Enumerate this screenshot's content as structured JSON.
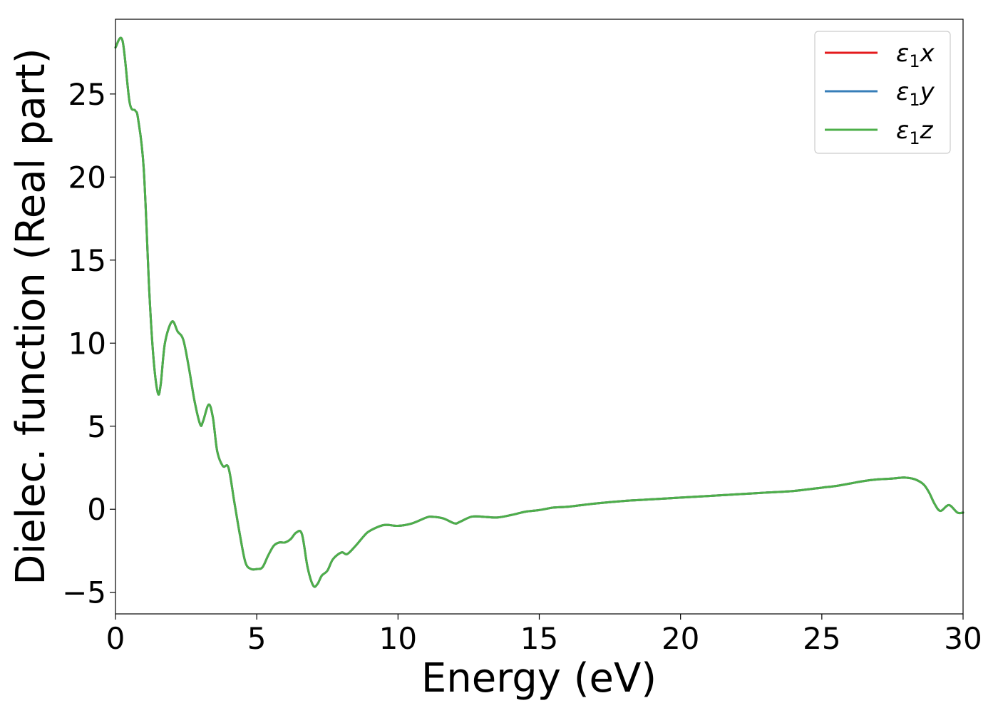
{
  "chart_data": {
    "type": "line",
    "title": "",
    "xlabel": "Energy (eV)",
    "ylabel": "Dielec. function (Real part)",
    "xlim": [
      0,
      30
    ],
    "ylim": [
      -6.3,
      29.5
    ],
    "xticks": [
      0,
      5,
      10,
      15,
      20,
      25,
      30
    ],
    "xtick_labels": [
      "0",
      "5",
      "10",
      "15",
      "20",
      "25",
      "30"
    ],
    "yticks": [
      -5,
      0,
      5,
      10,
      15,
      20,
      25
    ],
    "ytick_labels": [
      "−5",
      "0",
      "5",
      "10",
      "15",
      "20",
      "25"
    ],
    "grid": false,
    "legend_position": "top-right",
    "x": [
      0,
      0.25,
      0.5,
      0.7,
      0.8,
      1.0,
      1.2,
      1.35,
      1.5,
      1.6,
      1.75,
      2.0,
      2.2,
      2.4,
      2.6,
      2.8,
      3.0,
      3.1,
      3.3,
      3.45,
      3.6,
      3.8,
      4.0,
      4.2,
      4.4,
      4.6,
      4.8,
      5.0,
      5.2,
      5.4,
      5.6,
      5.8,
      6.0,
      6.2,
      6.4,
      6.6,
      6.8,
      7.0,
      7.15,
      7.3,
      7.5,
      7.7,
      8.0,
      8.2,
      8.5,
      8.8,
      9.0,
      9.5,
      10.0,
      10.5,
      11.0,
      11.2,
      11.6,
      12.0,
      12.2,
      12.6,
      13.0,
      13.5,
      14.0,
      14.5,
      15.0,
      15.5,
      16.0,
      17.0,
      18.0,
      19.0,
      20.0,
      21.0,
      22.0,
      23.0,
      24.0,
      25.0,
      25.5,
      26.0,
      26.5,
      27.0,
      27.5,
      27.8,
      28.0,
      28.3,
      28.6,
      28.8,
      29.0,
      29.2,
      29.5,
      29.8,
      30.0
    ],
    "series": [
      {
        "name": "ε₁x",
        "color": "#e41a1c",
        "values": [
          27.8,
          28.2,
          24.5,
          24.0,
          23.5,
          20.5,
          13.0,
          9.0,
          7.0,
          7.5,
          10.0,
          11.3,
          10.7,
          10.2,
          8.5,
          6.5,
          5.1,
          5.3,
          6.3,
          5.5,
          3.5,
          2.6,
          2.5,
          0.5,
          -1.5,
          -3.2,
          -3.6,
          -3.6,
          -3.5,
          -2.8,
          -2.2,
          -2.0,
          -2.0,
          -1.8,
          -1.4,
          -1.5,
          -3.5,
          -4.6,
          -4.5,
          -4.0,
          -3.7,
          -3.0,
          -2.6,
          -2.7,
          -2.2,
          -1.6,
          -1.3,
          -0.95,
          -1.0,
          -0.85,
          -0.5,
          -0.45,
          -0.55,
          -0.85,
          -0.75,
          -0.45,
          -0.45,
          -0.5,
          -0.35,
          -0.15,
          -0.05,
          0.1,
          0.15,
          0.35,
          0.5,
          0.6,
          0.7,
          0.8,
          0.9,
          1.0,
          1.1,
          1.3,
          1.4,
          1.55,
          1.7,
          1.8,
          1.85,
          1.9,
          1.9,
          1.8,
          1.5,
          1.0,
          0.3,
          -0.1,
          0.25,
          -0.2,
          -0.2
        ]
      },
      {
        "name": "ε₁y",
        "color": "#377eb8",
        "values": [
          27.8,
          28.2,
          24.5,
          24.0,
          23.5,
          20.5,
          13.0,
          9.0,
          7.0,
          7.5,
          10.0,
          11.3,
          10.7,
          10.2,
          8.5,
          6.5,
          5.1,
          5.3,
          6.3,
          5.5,
          3.5,
          2.6,
          2.5,
          0.5,
          -1.5,
          -3.2,
          -3.6,
          -3.6,
          -3.5,
          -2.8,
          -2.2,
          -2.0,
          -2.0,
          -1.8,
          -1.4,
          -1.5,
          -3.5,
          -4.6,
          -4.5,
          -4.0,
          -3.7,
          -3.0,
          -2.6,
          -2.7,
          -2.2,
          -1.6,
          -1.3,
          -0.95,
          -1.0,
          -0.85,
          -0.5,
          -0.45,
          -0.55,
          -0.85,
          -0.75,
          -0.45,
          -0.45,
          -0.5,
          -0.35,
          -0.15,
          -0.05,
          0.1,
          0.15,
          0.35,
          0.5,
          0.6,
          0.7,
          0.8,
          0.9,
          1.0,
          1.1,
          1.3,
          1.4,
          1.55,
          1.7,
          1.8,
          1.85,
          1.9,
          1.9,
          1.8,
          1.5,
          1.0,
          0.3,
          -0.1,
          0.25,
          -0.2,
          -0.2
        ]
      },
      {
        "name": "ε₁z",
        "color": "#4daf4a",
        "values": [
          27.8,
          28.2,
          24.5,
          24.0,
          23.5,
          20.5,
          13.0,
          9.0,
          7.0,
          7.5,
          10.0,
          11.3,
          10.7,
          10.2,
          8.5,
          6.5,
          5.1,
          5.3,
          6.3,
          5.5,
          3.5,
          2.6,
          2.5,
          0.5,
          -1.5,
          -3.2,
          -3.6,
          -3.6,
          -3.5,
          -2.8,
          -2.2,
          -2.0,
          -2.0,
          -1.8,
          -1.4,
          -1.5,
          -3.5,
          -4.6,
          -4.5,
          -4.0,
          -3.7,
          -3.0,
          -2.6,
          -2.7,
          -2.2,
          -1.6,
          -1.3,
          -0.95,
          -1.0,
          -0.85,
          -0.5,
          -0.45,
          -0.55,
          -0.85,
          -0.75,
          -0.45,
          -0.45,
          -0.5,
          -0.35,
          -0.15,
          -0.05,
          0.1,
          0.15,
          0.35,
          0.5,
          0.6,
          0.7,
          0.8,
          0.9,
          1.0,
          1.1,
          1.3,
          1.4,
          1.55,
          1.7,
          1.8,
          1.85,
          1.9,
          1.9,
          1.8,
          1.5,
          1.0,
          0.3,
          -0.1,
          0.25,
          -0.2,
          -0.2
        ]
      }
    ],
    "legend": [
      {
        "sym": "ε",
        "sub": "1",
        "axis": "x"
      },
      {
        "sym": "ε",
        "sub": "1",
        "axis": "y"
      },
      {
        "sym": "ε",
        "sub": "1",
        "axis": "z"
      }
    ]
  }
}
